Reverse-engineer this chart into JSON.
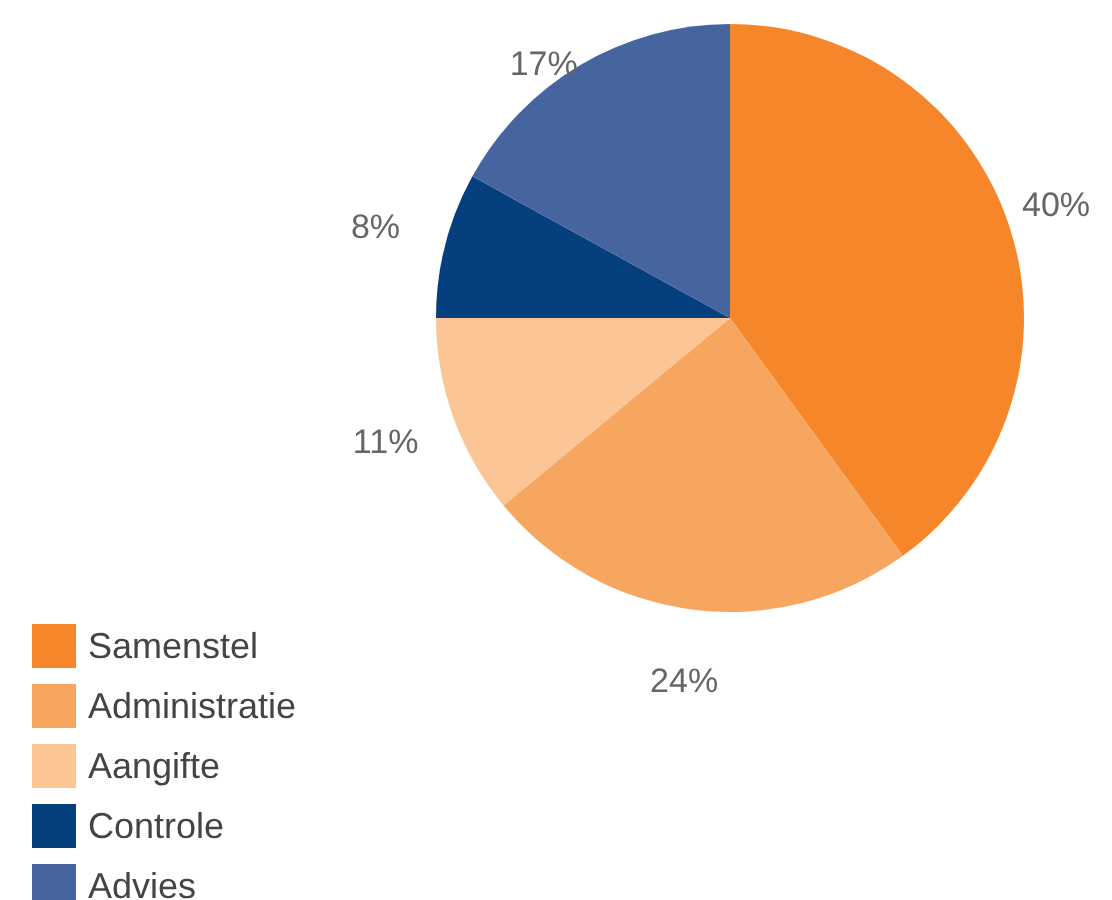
{
  "chart_data": {
    "type": "pie",
    "categories": [
      "Samenstel",
      "Administratie",
      "Aangifte",
      "Controle",
      "Advies"
    ],
    "values": [
      40,
      24,
      11,
      8,
      17
    ],
    "colors": [
      "#f5862a",
      "#f7a660",
      "#fbc595",
      "#063f7d",
      "#46649e"
    ],
    "value_labels": [
      "40%",
      "24%",
      "11%",
      "8%",
      "17%"
    ],
    "legend": "bottom left"
  }
}
